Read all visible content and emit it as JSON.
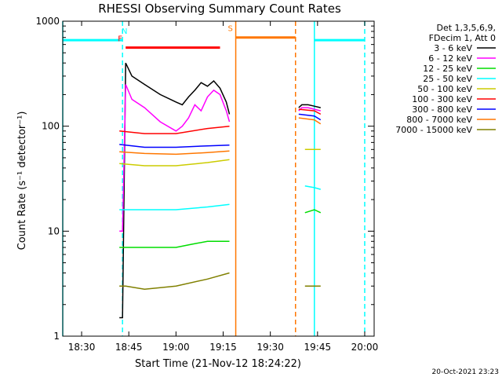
{
  "chart_data": {
    "type": "line",
    "title": "RHESSI Observing Summary Count Rates",
    "xlabel": "Start Time (21-Nov-12 18:24:22)",
    "ylabel": "Count Rate (s⁻¹ detector⁻¹)",
    "yscale": "log",
    "ylim": [
      1,
      1000
    ],
    "xlim": [
      "18:24",
      "20:03"
    ],
    "x_ticks": [
      "18:30",
      "18:45",
      "19:00",
      "19:15",
      "19:30",
      "19:45",
      "20:00"
    ],
    "y_ticks": [
      "1",
      "10",
      "100",
      "1000"
    ],
    "grid": false,
    "legend_position": "right",
    "legend_header": [
      "Det 1,3,5,6,9,",
      "FDecim 1, Att 0"
    ],
    "timestamp": "20-Oct-2021 23:23",
    "colors": {
      "s1": "#000000",
      "s2": "#ff00ff",
      "s3": "#00dd00",
      "s4": "#00ffff",
      "s5": "#cccc00",
      "s6": "#ff0000",
      "s7": "#0000ff",
      "s8": "#ff7700",
      "s9": "#808000"
    },
    "series": [
      {
        "name": "3 - 6 keV",
        "color": "#000000",
        "segments": [
          {
            "x": [
              "18:42",
              "18:43",
              "18:44",
              "18:46",
              "18:50",
              "18:55",
              "19:00",
              "19:02",
              "19:04",
              "19:06",
              "19:08",
              "19:10",
              "19:12",
              "19:14",
              "19:16",
              "19:17"
            ],
            "y": [
              1.5,
              1.5,
              400,
              300,
              250,
              200,
              170,
              160,
              190,
              220,
              260,
              240,
              270,
              230,
              170,
              130
            ]
          },
          {
            "x": [
              "19:39",
              "19:40",
              "19:42",
              "19:44",
              "19:46"
            ],
            "y": [
              150,
              160,
              160,
              155,
              150
            ]
          }
        ]
      },
      {
        "name": "6 - 12 keV",
        "color": "#ff00ff",
        "segments": [
          {
            "x": [
              "18:42",
              "18:43",
              "18:44",
              "18:46",
              "18:50",
              "18:55",
              "19:00",
              "19:02",
              "19:04",
              "19:06",
              "19:08",
              "19:10",
              "19:12",
              "19:14",
              "19:16",
              "19:17"
            ],
            "y": [
              10,
              10,
              250,
              180,
              150,
              110,
              90,
              100,
              120,
              160,
              140,
              190,
              220,
              200,
              140,
              110
            ]
          },
          {
            "x": [
              "19:39",
              "19:40",
              "19:42",
              "19:44",
              "19:46"
            ],
            "y": [
              140,
              150,
              150,
              145,
              140
            ]
          }
        ]
      },
      {
        "name": "12 - 25 keV",
        "color": "#00dd00",
        "segments": [
          {
            "x": [
              "18:42",
              "18:44",
              "18:50",
              "19:00",
              "19:05",
              "19:10",
              "19:17"
            ],
            "y": [
              7,
              7,
              7,
              7,
              7.5,
              8,
              8
            ]
          },
          {
            "x": [
              "19:41",
              "19:44",
              "19:46"
            ],
            "y": [
              15,
              16,
              15
            ]
          }
        ]
      },
      {
        "name": "25 - 50 keV",
        "color": "#00ffff",
        "segments": [
          {
            "x": [
              "18:42",
              "18:44",
              "18:50",
              "19:00",
              "19:10",
              "19:17"
            ],
            "y": [
              16,
              16,
              16,
              16,
              17,
              18
            ]
          },
          {
            "x": [
              "19:41",
              "19:44",
              "19:46"
            ],
            "y": [
              27,
              26,
              25
            ]
          }
        ]
      },
      {
        "name": "50 - 100 keV",
        "color": "#cccc00",
        "segments": [
          {
            "x": [
              "18:42",
              "18:50",
              "19:00",
              "19:10",
              "19:17"
            ],
            "y": [
              44,
              42,
              42,
              45,
              48
            ]
          },
          {
            "x": [
              "19:41",
              "19:44",
              "19:46"
            ],
            "y": [
              60,
              60,
              60
            ]
          }
        ]
      },
      {
        "name": "100 - 300 keV",
        "color": "#ff0000",
        "segments": [
          {
            "x": [
              "18:42",
              "18:50",
              "19:00",
              "19:10",
              "19:17"
            ],
            "y": [
              90,
              85,
              85,
              95,
              100
            ]
          },
          {
            "x": [
              "19:39",
              "19:44",
              "19:46"
            ],
            "y": [
              145,
              140,
              130
            ]
          }
        ]
      },
      {
        "name": "300 - 800 keV",
        "color": "#0000ff",
        "segments": [
          {
            "x": [
              "18:42",
              "18:50",
              "19:00",
              "19:10",
              "19:17"
            ],
            "y": [
              67,
              63,
              63,
              65,
              66
            ]
          },
          {
            "x": [
              "19:39",
              "19:44",
              "19:46"
            ],
            "y": [
              130,
              125,
              115
            ]
          }
        ]
      },
      {
        "name": "800 - 7000 keV",
        "color": "#ff7700",
        "segments": [
          {
            "x": [
              "18:42",
              "18:50",
              "19:00",
              "19:10",
              "19:17"
            ],
            "y": [
              57,
              55,
              54,
              56,
              58
            ]
          },
          {
            "x": [
              "19:39",
              "19:44",
              "19:46"
            ],
            "y": [
              120,
              115,
              105
            ]
          }
        ]
      },
      {
        "name": "7000 - 15000 keV",
        "color": "#808000",
        "segments": [
          {
            "x": [
              "18:42",
              "18:44",
              "18:50",
              "19:00",
              "19:10",
              "19:17"
            ],
            "y": [
              3,
              3,
              2.8,
              3,
              3.5,
              4
            ]
          },
          {
            "x": [
              "19:41",
              "19:44",
              "19:46"
            ],
            "y": [
              3,
              3,
              3
            ]
          }
        ]
      }
    ],
    "flags": [
      {
        "label": "N",
        "color": "#00ffff",
        "from": "18:24",
        "to": "18:43",
        "level": 660
      },
      {
        "label": "N",
        "color": "#00ffff",
        "from": "19:44",
        "to": "20:00",
        "level": 660
      },
      {
        "label": "F",
        "color": "#ff0000",
        "from": "18:44",
        "to": "19:14",
        "level": 560
      },
      {
        "label": "S",
        "color": "#ff7700",
        "from": "19:19",
        "to": "19:38",
        "level": 700
      }
    ],
    "verticals": [
      {
        "color": "#00ffff",
        "at": "18:24",
        "dashed": false
      },
      {
        "color": "#00ffff",
        "at": "18:43",
        "dashed": true
      },
      {
        "color": "#00ffff",
        "at": "19:44",
        "dashed": false
      },
      {
        "color": "#00ffff",
        "at": "20:00",
        "dashed": true
      },
      {
        "color": "#ff7700",
        "at": "19:19",
        "dashed": false
      },
      {
        "color": "#ff7700",
        "at": "19:38",
        "dashed": true
      }
    ]
  }
}
